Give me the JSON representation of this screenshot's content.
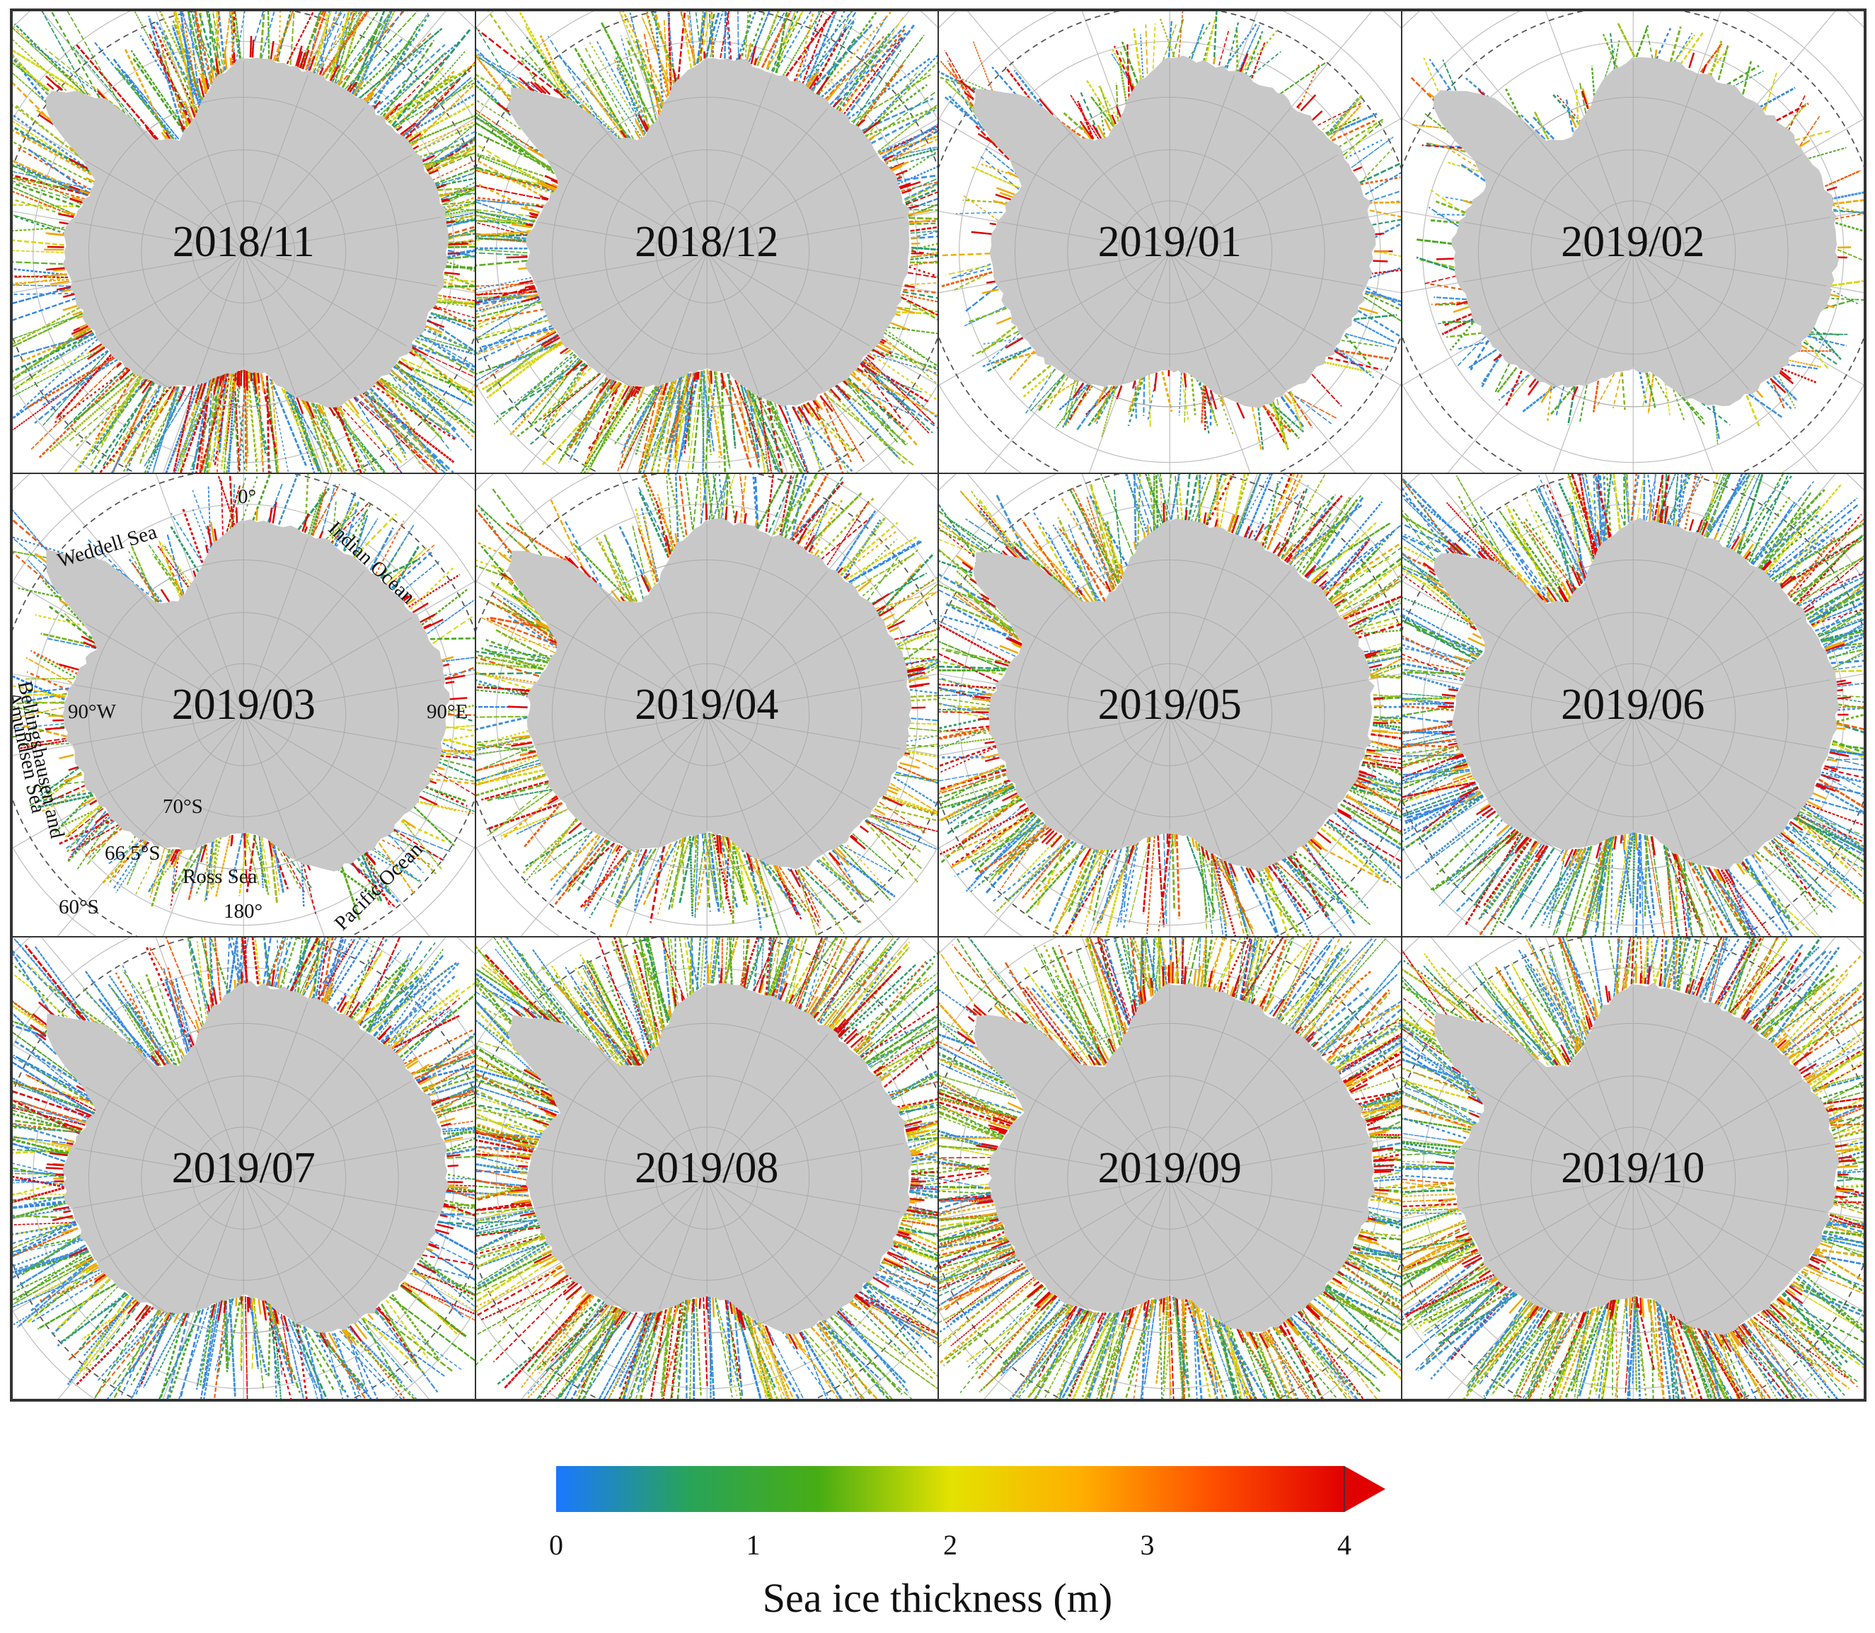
{
  "panels": [
    {
      "label": "2018/11",
      "coverage": 0.92,
      "tone": "mixed"
    },
    {
      "label": "2018/12",
      "coverage": 0.82,
      "tone": "mixed"
    },
    {
      "label": "2019/01",
      "coverage": 0.3,
      "tone": "mixed"
    },
    {
      "label": "2019/02",
      "coverage": 0.18,
      "tone": "mixed"
    },
    {
      "label": "2019/03",
      "coverage": 0.38,
      "tone": "mixed"
    },
    {
      "label": "2019/04",
      "coverage": 0.55,
      "tone": "mixed"
    },
    {
      "label": "2019/05",
      "coverage": 0.75,
      "tone": "mixed"
    },
    {
      "label": "2019/06",
      "coverage": 0.85,
      "tone": "blue"
    },
    {
      "label": "2019/07",
      "coverage": 0.8,
      "tone": "blue"
    },
    {
      "label": "2019/08",
      "coverage": 1.0,
      "tone": "mixed"
    },
    {
      "label": "2019/09",
      "coverage": 1.0,
      "tone": "mixed"
    },
    {
      "label": "2019/10",
      "coverage": 0.95,
      "tone": "mixed"
    }
  ],
  "annotations": {
    "zero_meridian": "0°",
    "indian_ocean": "Indian Ocean",
    "weddell_sea": "Weddell Sea",
    "lon_90w": "90°W",
    "lon_90e": "90°E",
    "bellingshausen": "Bellingshausen and",
    "amundsen": "Amundsen Sea",
    "lat_70": "70°S",
    "lat_665": "66.5°S",
    "lat_60": "60°S",
    "ross_sea": "Ross Sea",
    "lon_180": "180°",
    "pacific_ocean": "Pacific Ocean"
  },
  "colorbar": {
    "title": "Sea ice thickness (m)",
    "ticks": [
      "0",
      "1",
      "2",
      "3",
      "4"
    ],
    "min": 0,
    "max": 4,
    "colors": [
      "#1a78ff",
      "#28a35a",
      "#48ad14",
      "#e4e200",
      "#ffae00",
      "#ff4f00",
      "#e00000"
    ]
  },
  "colors": {
    "land": "#c8c8c8",
    "grid": "#bdbdbd",
    "dashed_circle": "#555555"
  }
}
